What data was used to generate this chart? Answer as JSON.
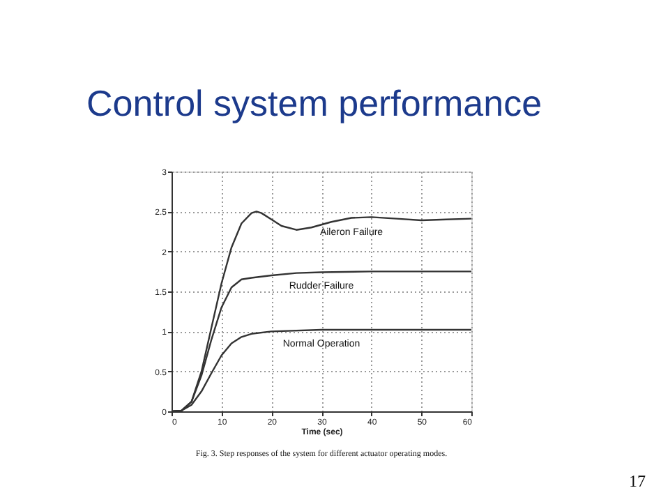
{
  "chart_data": {
    "type": "line",
    "title": "Control system performance",
    "xlabel": "Time (sec)",
    "annotations": [
      "Fig. 3. Step responses of the system for different actuator operating modes.",
      "17"
    ],
    "xlim": [
      0,
      60
    ],
    "xticks": [
      0,
      10,
      20,
      30,
      40,
      50,
      60
    ],
    "ylim": [
      0,
      3
    ],
    "yticks": [
      0,
      0.5,
      1,
      1.5,
      2,
      2.5,
      3
    ],
    "grid": true,
    "legend": false,
    "marker": "none",
    "line_style": "solid",
    "series": [
      {
        "name": "Aileron Failure",
        "color": "#333333",
        "x": [
          0,
          2,
          4,
          6,
          8,
          10,
          12,
          14,
          16,
          17,
          18,
          20,
          22,
          25,
          28,
          32,
          36,
          40,
          45,
          50,
          55,
          60
        ],
        "values": [
          0,
          0.01,
          0.12,
          0.5,
          1.05,
          1.6,
          2.05,
          2.35,
          2.48,
          2.5,
          2.48,
          2.4,
          2.32,
          2.27,
          2.3,
          2.37,
          2.42,
          2.43,
          2.41,
          2.39,
          2.4,
          2.41
        ]
      },
      {
        "name": "Rudder Failure",
        "color": "#333333",
        "x": [
          0,
          2,
          4,
          6,
          8,
          10,
          12,
          14,
          16,
          20,
          25,
          30,
          40,
          60
        ],
        "values": [
          0,
          0.01,
          0.12,
          0.45,
          0.9,
          1.3,
          1.55,
          1.65,
          1.67,
          1.7,
          1.73,
          1.74,
          1.75,
          1.75
        ]
      },
      {
        "name": "Normal Operation",
        "color": "#333333",
        "x": [
          0,
          2,
          4,
          6,
          8,
          10,
          12,
          14,
          16,
          20,
          30,
          40,
          60
        ],
        "values": [
          0,
          0.01,
          0.08,
          0.25,
          0.48,
          0.7,
          0.85,
          0.93,
          0.97,
          1.0,
          1.02,
          1.02,
          1.02
        ]
      }
    ]
  }
}
